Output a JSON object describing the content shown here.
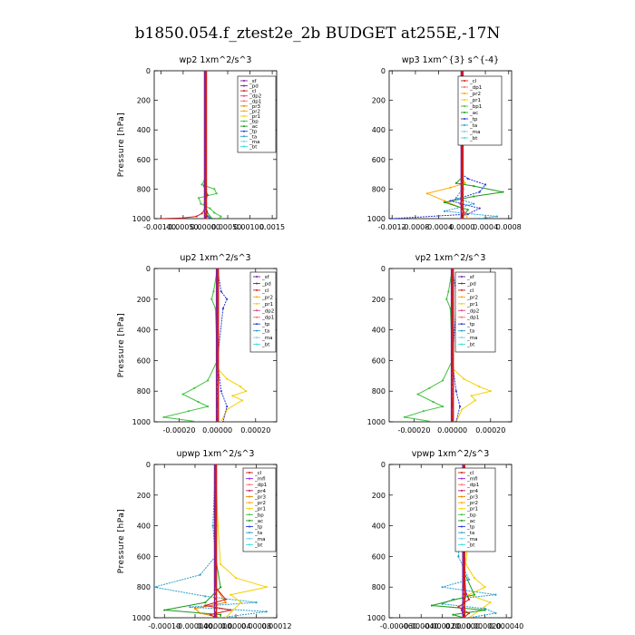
{
  "figure_title": "b1850.054.f_ztest2e_2b  BUDGET at255E,-17N",
  "colors": {
    "sf": "#7a1fa2",
    "pd": "#5c2d91",
    "cl": "#d01c1c",
    "dp2": "#e0427a",
    "dp1": "#ff6a6a",
    "pr3": "#e58a00",
    "pr2": "#ffa500",
    "pr1": "#f5d000",
    "bp": "#3fc13f",
    "ac": "#1b9b1b",
    "tp": "#2c39d6",
    "ta": "#2aa0c8",
    "ma": "#7ad1f0",
    "bt": "#35e0e0",
    "mfl": "#8a2be2",
    "pr4": "#c2185b"
  },
  "chart_data": [
    {
      "type": "line",
      "title": "wp2   1xm^2/s^3",
      "ylabel": "Pressure [hPa]",
      "ylim": [
        1000,
        0
      ],
      "xlim": [
        -0.00115,
        0.0016
      ],
      "xticks": [
        -0.001,
        -0.0005,
        0.0,
        0.0005,
        0.001,
        0.0015
      ],
      "xtick_labels": [
        "-0.00100.",
        "-0.00050.",
        "0.00000",
        "0.00050.",
        "0.00100.",
        "0.0015"
      ],
      "yticks": [
        0,
        200,
        400,
        600,
        800,
        1000
      ],
      "legend": [
        "_sf",
        "_pd",
        "_cl",
        "_dp2",
        "_dp1",
        "_pr3",
        "_pr2",
        "_pr1",
        "_bp",
        "_ac",
        "_tp",
        "_ta",
        "_ma",
        "_bt"
      ],
      "series": [
        {
          "key": "bp",
          "x": [
            0,
            0,
            0,
            -2e-05,
            -8e-05,
            0.0002,
            0.00025,
            -0.00015,
            -0.0001,
            0.0001,
            0.0002,
            0.00035,
            0.0003
          ],
          "y": [
            0,
            400,
            700,
            740,
            770,
            800,
            830,
            860,
            900,
            930,
            960,
            985,
            1000
          ]
        },
        {
          "key": "ac",
          "x": [
            0,
            0,
            -3e-05,
            5e-05,
            -2e-05,
            3e-05,
            0.0001,
            0.00015
          ],
          "y": [
            0,
            700,
            780,
            840,
            900,
            950,
            985,
            1000
          ]
        },
        {
          "key": "tp",
          "x": [
            0,
            0,
            1e-05,
            -1e-05,
            3e-05,
            5e-05,
            0.0001
          ],
          "y": [
            0,
            700,
            800,
            900,
            950,
            985,
            1000
          ]
        },
        {
          "key": "pr2",
          "x": [
            0,
            0,
            2e-05,
            -2e-05,
            3e-05
          ],
          "y": [
            0,
            800,
            900,
            960,
            1000
          ]
        },
        {
          "key": "sf",
          "x": [
            0,
            0,
            1e-05,
            2e-05,
            1e-05
          ],
          "y": [
            0,
            800,
            900,
            960,
            1000
          ]
        },
        {
          "key": "cl",
          "x": [
            0,
            0,
            0,
            -2e-05,
            -8e-05,
            -0.0002,
            -0.0005,
            -0.001
          ],
          "y": [
            0,
            800,
            900,
            940,
            965,
            985,
            995,
            1000
          ]
        }
      ]
    },
    {
      "type": "line",
      "title": "wp3   1xm^{3} s^{-4}",
      "ylabel": "",
      "ylim": [
        1000,
        0
      ],
      "xlim": [
        -0.00125,
        0.00085
      ],
      "xticks": [
        -0.0012,
        -0.0008,
        -0.0004,
        0.0,
        0.0004,
        0.0008
      ],
      "xtick_labels": [
        "-0.0012",
        "-0.0008",
        "-0.0004",
        "0.0000",
        "0.0004",
        "0.0008"
      ],
      "yticks": [
        0,
        200,
        400,
        600,
        800,
        1000
      ],
      "legend": [
        "_cl",
        "_dp1",
        "_pr2",
        "_pr1",
        "_bp1",
        "_ac",
        "_tp",
        "_ta",
        "_ma",
        "_bt"
      ],
      "series": [
        {
          "key": "pr2",
          "x": [
            0,
            0,
            5e-05,
            -0.0002,
            -0.0006,
            -0.0003,
            0.0,
            0.0001
          ],
          "y": [
            0,
            720,
            760,
            790,
            830,
            880,
            930,
            1000
          ]
        },
        {
          "key": "ac",
          "x": [
            0,
            0,
            -0.0001,
            0.0002,
            0.0007,
            0.0002,
            -0.0003,
            0.0001,
            0.0
          ],
          "y": [
            0,
            720,
            760,
            780,
            820,
            850,
            890,
            940,
            1000
          ]
        },
        {
          "key": "tp",
          "x": [
            0,
            0,
            0.0001,
            0.0004,
            0.0003,
            -0.0002,
            0.0003,
            0.0001,
            -0.0012
          ],
          "y": [
            0,
            700,
            730,
            770,
            820,
            880,
            930,
            970,
            1000
          ]
        },
        {
          "key": "ta",
          "x": [
            0,
            0,
            -0.0001,
            0.0002,
            -0.0003,
            0.0006,
            0.0003
          ],
          "y": [
            0,
            800,
            860,
            900,
            950,
            985,
            1000
          ]
        },
        {
          "key": "dp1",
          "x": [
            0,
            0,
            2e-05,
            -3e-05,
            5e-05,
            0.0
          ],
          "y": [
            0,
            700,
            800,
            900,
            960,
            1000
          ]
        },
        {
          "key": "cl",
          "x": [
            0,
            0,
            1e-05,
            -2e-05,
            2e-05,
            0.0
          ],
          "y": [
            0,
            700,
            800,
            900,
            960,
            1000
          ]
        }
      ]
    },
    {
      "type": "line",
      "title": "up2   1xm^2/s^3",
      "ylabel": "Pressure [hPa]",
      "ylim": [
        1000,
        0
      ],
      "xlim": [
        -0.00033,
        0.00031
      ],
      "xticks": [
        -0.0002,
        0.0,
        0.0002
      ],
      "xtick_labels": [
        "-0.00020",
        "0.00000",
        "0.00020"
      ],
      "yticks": [
        0,
        200,
        400,
        600,
        800,
        1000
      ],
      "legend": [
        "_sf",
        "_pd",
        "_cl",
        "_pr2",
        "_pr1",
        "_dp2",
        "_dp1",
        "_tp",
        "_ta",
        "_ma",
        "_bt"
      ],
      "series": [
        {
          "key": "bp",
          "x": [
            0,
            -2e-05,
            -3e-05,
            -1e-05,
            0,
            -5e-05,
            -0.00012,
            -0.00018,
            -0.0001,
            -5e-05,
            -0.00015,
            -0.00028,
            -0.0001
          ],
          "y": [
            0,
            150,
            200,
            260,
            600,
            730,
            780,
            820,
            870,
            900,
            930,
            970,
            1000
          ]
        },
        {
          "key": "pr1",
          "x": [
            0,
            0,
            5e-05,
            0.00012,
            0.00015,
            8e-05,
            0.00013,
            5e-05,
            2e-05
          ],
          "y": [
            0,
            650,
            720,
            770,
            800,
            830,
            860,
            920,
            1000
          ]
        },
        {
          "key": "tp",
          "x": [
            0,
            2e-05,
            5e-05,
            3e-05,
            0,
            2e-05,
            5e-05,
            3e-05
          ],
          "y": [
            0,
            150,
            200,
            260,
            600,
            800,
            900,
            1000
          ]
        },
        {
          "key": "cl",
          "x": [
            0,
            0,
            3e-06,
            -3e-06,
            0
          ],
          "y": [
            0,
            600,
            800,
            950,
            1000
          ]
        }
      ]
    },
    {
      "type": "line",
      "title": "vp2   1xm^2/s^3",
      "ylabel": "",
      "ylim": [
        1000,
        0
      ],
      "xlim": [
        -0.00033,
        0.00031
      ],
      "xticks": [
        -0.0002,
        0.0,
        0.0002
      ],
      "xtick_labels": [
        "-0.00020",
        "0.00000",
        "0.00020"
      ],
      "yticks": [
        0,
        200,
        400,
        600,
        800,
        1000
      ],
      "legend": [
        "_sf",
        "_pd",
        "_cl",
        "_pr2",
        "_pr1",
        "_dp2",
        "_dp1",
        "_tp",
        "_ta",
        "_ma",
        "_bt"
      ],
      "series": [
        {
          "key": "bp",
          "x": [
            0,
            -2e-05,
            -3e-05,
            -1e-05,
            0,
            -5e-05,
            -0.00012,
            -0.00018,
            -0.0001,
            -5e-05,
            -0.00015,
            -0.00025,
            -0.0001
          ],
          "y": [
            0,
            150,
            200,
            260,
            600,
            730,
            780,
            820,
            870,
            900,
            930,
            970,
            1000
          ]
        },
        {
          "key": "pr1",
          "x": [
            0,
            0,
            6e-05,
            0.00014,
            0.0002,
            0.0001,
            0.00012,
            5e-05,
            2e-05
          ],
          "y": [
            0,
            650,
            720,
            770,
            800,
            830,
            860,
            920,
            1000
          ]
        },
        {
          "key": "tp",
          "x": [
            0,
            2e-05,
            4e-05,
            2e-05,
            0,
            2e-05,
            4e-05,
            2e-05
          ],
          "y": [
            0,
            150,
            200,
            260,
            600,
            800,
            900,
            1000
          ]
        },
        {
          "key": "cl",
          "x": [
            0,
            0,
            3e-06,
            -3e-06,
            0
          ],
          "y": [
            0,
            600,
            800,
            950,
            1000
          ]
        }
      ]
    },
    {
      "type": "line",
      "title": "upwp   1xm^2/s^3",
      "ylabel": "Pressure [hPa]",
      "ylim": [
        1000,
        0
      ],
      "xlim": [
        -0.00012,
        0.00012
      ],
      "xticks": [
        -0.0001,
        -4e-05,
        0.0,
        4e-05,
        8e-05,
        0.00012
      ],
      "xtick_labels": [
        "-0.00010",
        "-0.000040.",
        "0.000000.",
        "0.00004",
        "0.00008",
        "0.00012"
      ],
      "yticks": [
        0,
        200,
        400,
        600,
        800,
        1000
      ],
      "legend": [
        "_cl",
        "_mfl",
        "_dp1",
        "_pr4",
        "_pr3",
        "_pr2",
        "_pr1",
        "_bp",
        "_ac",
        "_tp",
        "_ta",
        "_ma",
        "_bt"
      ],
      "series": [
        {
          "key": "ta",
          "x": [
            0,
            -5e-06,
            0,
            -3e-05,
            -0.00012,
            -2e-05,
            8e-05,
            -5e-05,
            0.0001,
            1e-05
          ],
          "y": [
            0,
            400,
            600,
            720,
            800,
            860,
            900,
            930,
            960,
            1000
          ]
        },
        {
          "key": "pr1",
          "x": [
            0,
            5e-06,
            1e-05,
            4e-05,
            0.0001,
            3e-05,
            5e-05,
            2e-05
          ],
          "y": [
            0,
            400,
            650,
            740,
            800,
            850,
            900,
            1000
          ]
        },
        {
          "key": "ac",
          "x": [
            0,
            0,
            1e-05,
            -2e-05,
            -0.0001,
            1e-05,
            1e-05
          ],
          "y": [
            0,
            600,
            800,
            900,
            950,
            980,
            1000
          ]
        },
        {
          "key": "pr3",
          "x": [
            0,
            0,
            2e-05,
            -4e-05,
            -3e-05,
            1e-05
          ],
          "y": [
            0,
            800,
            900,
            940,
            970,
            1000
          ]
        },
        {
          "key": "cl",
          "x": [
            0,
            0,
            2e-05,
            -2e-05,
            3e-05,
            -1e-05,
            0
          ],
          "y": [
            0,
            800,
            880,
            920,
            950,
            980,
            1000
          ]
        }
      ]
    },
    {
      "type": "line",
      "title": "vpwp   1xm^2/s^3",
      "ylabel": "",
      "ylim": [
        1000,
        0
      ],
      "xlim": [
        -7e-05,
        4.5e-05
      ],
      "xticks": [
        -6e-05,
        -4e-05,
        -2e-05,
        0.0,
        2e-05,
        4e-05
      ],
      "xtick_labels": [
        "-0.000060.",
        "-0.000040.",
        "-0.000020.",
        "0.000000.",
        "0.000020.",
        "0.000040"
      ],
      "yticks": [
        0,
        200,
        400,
        600,
        800,
        1000
      ],
      "legend": [
        "_cl",
        "_mfl",
        "_dp1",
        "_pr4",
        "_pr3",
        "_pr2",
        "_pr1",
        "_bp",
        "_ac",
        "_tp",
        "_ta",
        "_ma",
        "_bt"
      ],
      "series": [
        {
          "key": "pr1",
          "x": [
            0,
            2e-06,
            4e-06,
            2e-06,
            4e-06,
            2e-06,
            1e-05,
            2e-05,
            5e-06,
            2.5e-05,
            5e-06
          ],
          "y": [
            0,
            150,
            200,
            300,
            500,
            650,
            740,
            800,
            850,
            900,
            1000
          ]
        },
        {
          "key": "ta",
          "x": [
            0,
            -5e-06,
            5e-06,
            -2e-05,
            3e-05,
            -1e-05,
            -2e-05,
            2e-05,
            3e-05,
            5e-06
          ],
          "y": [
            0,
            600,
            750,
            800,
            850,
            880,
            910,
            940,
            970,
            1000
          ]
        },
        {
          "key": "ac",
          "x": [
            0,
            0,
            1e-05,
            -3e-05,
            2e-05,
            -1e-05,
            0
          ],
          "y": [
            0,
            700,
            850,
            920,
            950,
            980,
            1000
          ]
        },
        {
          "key": "cl",
          "x": [
            0,
            0,
            5e-06,
            -5e-06,
            5e-06,
            0
          ],
          "y": [
            0,
            800,
            880,
            930,
            970,
            1000
          ]
        },
        {
          "key": "mfl",
          "x": [
            0,
            0,
            2e-06,
            -2e-06,
            0
          ],
          "y": [
            0,
            600,
            850,
            950,
            1000
          ]
        }
      ]
    }
  ]
}
